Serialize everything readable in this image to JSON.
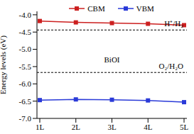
{
  "chart_data": {
    "type": "line",
    "y_label": "Energy levels (eV)",
    "categories": [
      "1L",
      "2L",
      "3L",
      "4L",
      "5L"
    ],
    "series": [
      {
        "name": "CBM",
        "color": "#cc2020",
        "marker": "square",
        "values": [
          -4.18,
          -4.22,
          -4.24,
          -4.26,
          -4.3
        ]
      },
      {
        "name": "VBM",
        "color": "#2a3ad8",
        "marker": "square",
        "values": [
          -6.47,
          -6.45,
          -6.46,
          -6.48,
          -6.53
        ]
      }
    ],
    "ylim": [
      -7.0,
      -3.9
    ],
    "yticks": [
      {
        "value": -7,
        "label": "-7.0"
      },
      {
        "value": -6.5,
        "label": "-6.5"
      },
      {
        "value": -6,
        "label": "-6.0"
      },
      {
        "value": -5.5,
        "label": "-5.5"
      },
      {
        "value": -5,
        "label": "-5.0"
      },
      {
        "value": -4.5,
        "label": "-4.5"
      },
      {
        "value": -4,
        "label": "-4.0"
      }
    ],
    "reference_lines": [
      {
        "value": -4.44,
        "label": "H⁺/H₂",
        "line_style": "dashed"
      },
      {
        "value": -5.67,
        "label": "O₂/H₂O",
        "line_style": "dashed"
      }
    ],
    "annotations": [
      {
        "text": "BiOI",
        "x": "3L",
        "y": -5.3
      }
    ],
    "legend": "top",
    "grid": false
  }
}
